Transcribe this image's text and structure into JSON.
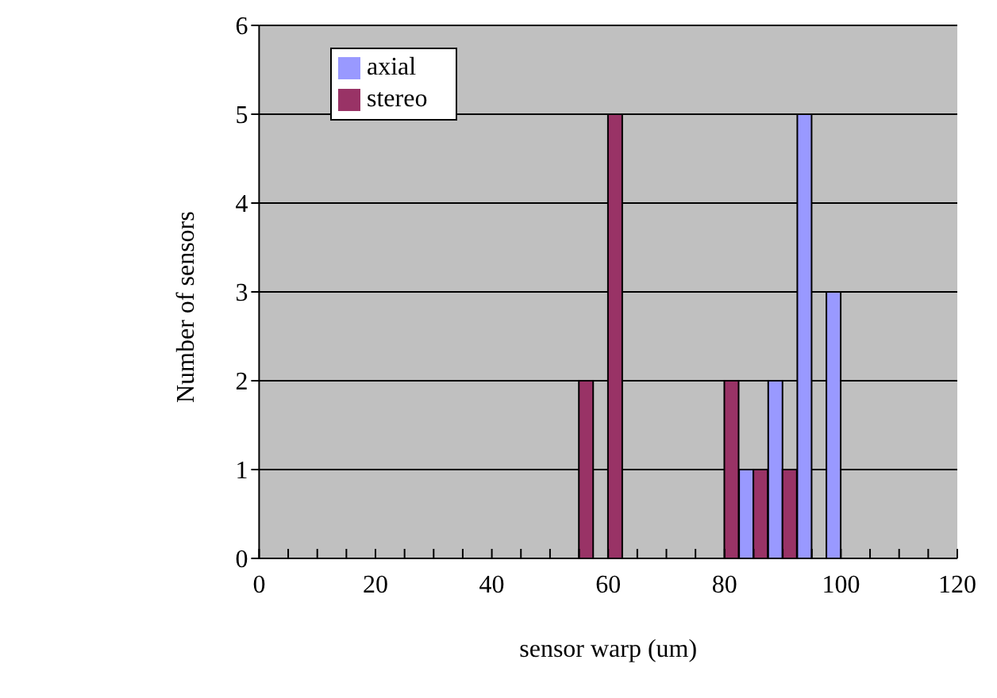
{
  "chart_data": {
    "type": "bar",
    "xlabel": "sensor warp (um)",
    "ylabel": "Number of sensors",
    "x": [
      55,
      60,
      80,
      85,
      90,
      95,
      100
    ],
    "series": [
      {
        "name": "axial",
        "color": "#9999ff",
        "values": [
          0,
          0,
          0,
          1,
          2,
          5,
          3
        ]
      },
      {
        "name": "stereo",
        "color": "#993366",
        "values": [
          2,
          5,
          2,
          1,
          1,
          0,
          0
        ]
      }
    ],
    "xlim": [
      0,
      120
    ],
    "xticks": [
      0,
      {
        "value": 5,
        "label": null
      },
      {
        "value": 10,
        "label": null
      },
      {
        "value": 15,
        "label": null
      },
      20,
      {
        "value": 25,
        "label": null
      },
      {
        "value": 30,
        "label": null
      },
      {
        "value": 35,
        "label": null
      },
      40,
      {
        "value": 45,
        "label": null
      },
      {
        "value": 50,
        "label": null
      },
      {
        "value": 55,
        "label": null
      },
      60,
      {
        "value": 65,
        "label": null
      },
      {
        "value": 70,
        "label": null
      },
      {
        "value": 75,
        "label": null
      },
      80,
      {
        "value": 85,
        "label": null
      },
      {
        "value": 90,
        "label": null
      },
      {
        "value": 95,
        "label": null
      },
      100,
      {
        "value": 105,
        "label": null
      },
      {
        "value": 110,
        "label": null
      },
      {
        "value": 115,
        "label": null
      },
      120
    ],
    "ylim": [
      0,
      6
    ],
    "yticks": [
      0,
      1,
      2,
      3,
      4,
      5,
      6
    ],
    "grid": "y",
    "legend": "top left"
  }
}
